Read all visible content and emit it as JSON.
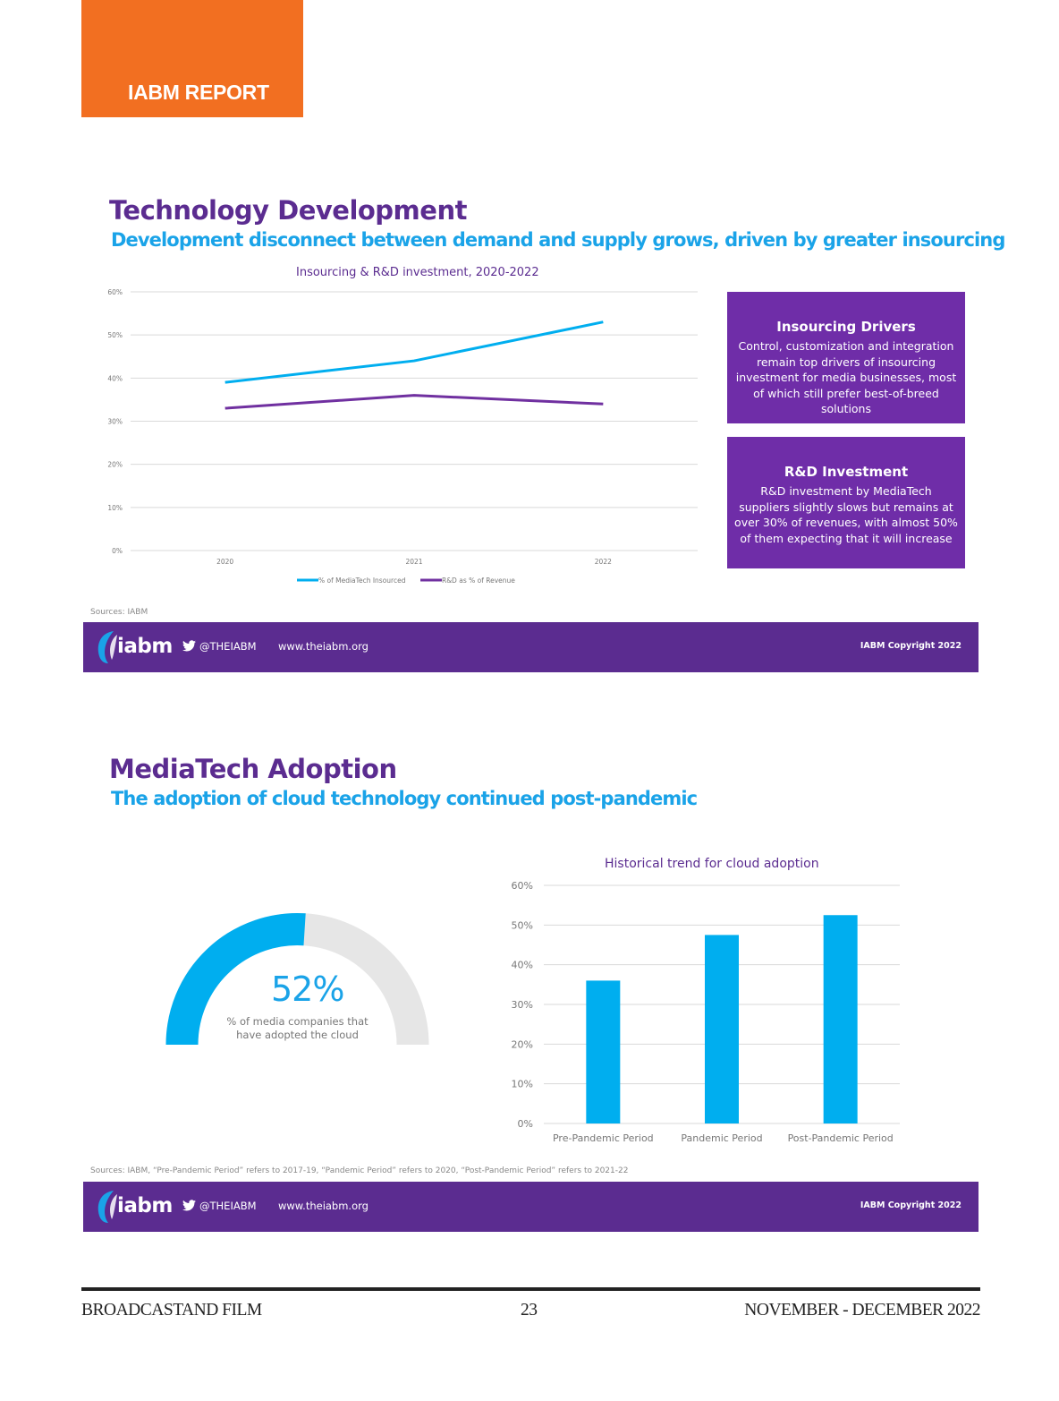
{
  "header": {
    "report_label": "IABM REPORT"
  },
  "section1": {
    "title": "Technology Development",
    "subtitle": "Development disconnect between demand and supply grows, driven by greater insourcing",
    "sources": "Sources: IABM",
    "boxes": [
      {
        "title": "Insourcing Drivers",
        "body": "Control, customization and integration remain top drivers of insourcing investment for media businesses, most of which still prefer best-of-breed solutions"
      },
      {
        "title": "R&D Investment",
        "body": "R&D investment by MediaTech suppliers slightly slows but remains at over 30% of revenues, with almost 50% of them expecting that it will increase"
      }
    ]
  },
  "section2": {
    "title": "MediaTech Adoption",
    "subtitle": "The adoption of cloud technology continued post-pandemic",
    "sources": "Sources: IABM, “Pre-Pandemic Period” refers to 2017-19, “Pandemic Period” refers to 2020, “Post-Pandemic Period” refers to 2021-22",
    "gauge": {
      "value": 52,
      "value_label": "52%",
      "caption": "% of media companies that have adopted the cloud",
      "fill_color": "#00aeef",
      "track_color": "#e6e6e6"
    }
  },
  "banner": {
    "logo_text": "iabm",
    "handle": "@THEIABM",
    "site": "www.theiabm.org",
    "copyright": "IABM Copyright 2022"
  },
  "footer": {
    "left": "BROADCASTAND FILM",
    "page": "23",
    "right": "NOVEMBER - DECEMBER 2022"
  },
  "colors": {
    "orange": "#f26f21",
    "purple": "#5b2c90",
    "box_purple": "#6f2da8",
    "blue": "#00aeef",
    "line_purple": "#7030a0"
  },
  "chart_data": [
    {
      "type": "line",
      "title": "Insourcing & R&D investment, 2020-2022",
      "x": [
        "2020",
        "2021",
        "2022"
      ],
      "y_ticks": [
        "0%",
        "10%",
        "20%",
        "30%",
        "40%",
        "50%",
        "60%"
      ],
      "ylim": [
        0,
        60
      ],
      "series": [
        {
          "name": "% of MediaTech Insourced",
          "values": [
            39,
            44,
            53
          ],
          "color": "#00aeef"
        },
        {
          "name": "R&D as % of Revenue",
          "values": [
            33,
            36,
            34
          ],
          "color": "#7030a0"
        }
      ],
      "grid": true,
      "legend": "bottom"
    },
    {
      "type": "bar",
      "title": "Historical trend for cloud adoption",
      "categories": [
        "Pre-Pandemic Period",
        "Pandemic Period",
        "Post-Pandemic Period"
      ],
      "values": [
        36,
        47.5,
        52.5
      ],
      "y_ticks": [
        "0%",
        "10%",
        "20%",
        "30%",
        "40%",
        "50%",
        "60%"
      ],
      "ylim": [
        0,
        60
      ],
      "color": "#00aeef",
      "grid": true
    }
  ]
}
